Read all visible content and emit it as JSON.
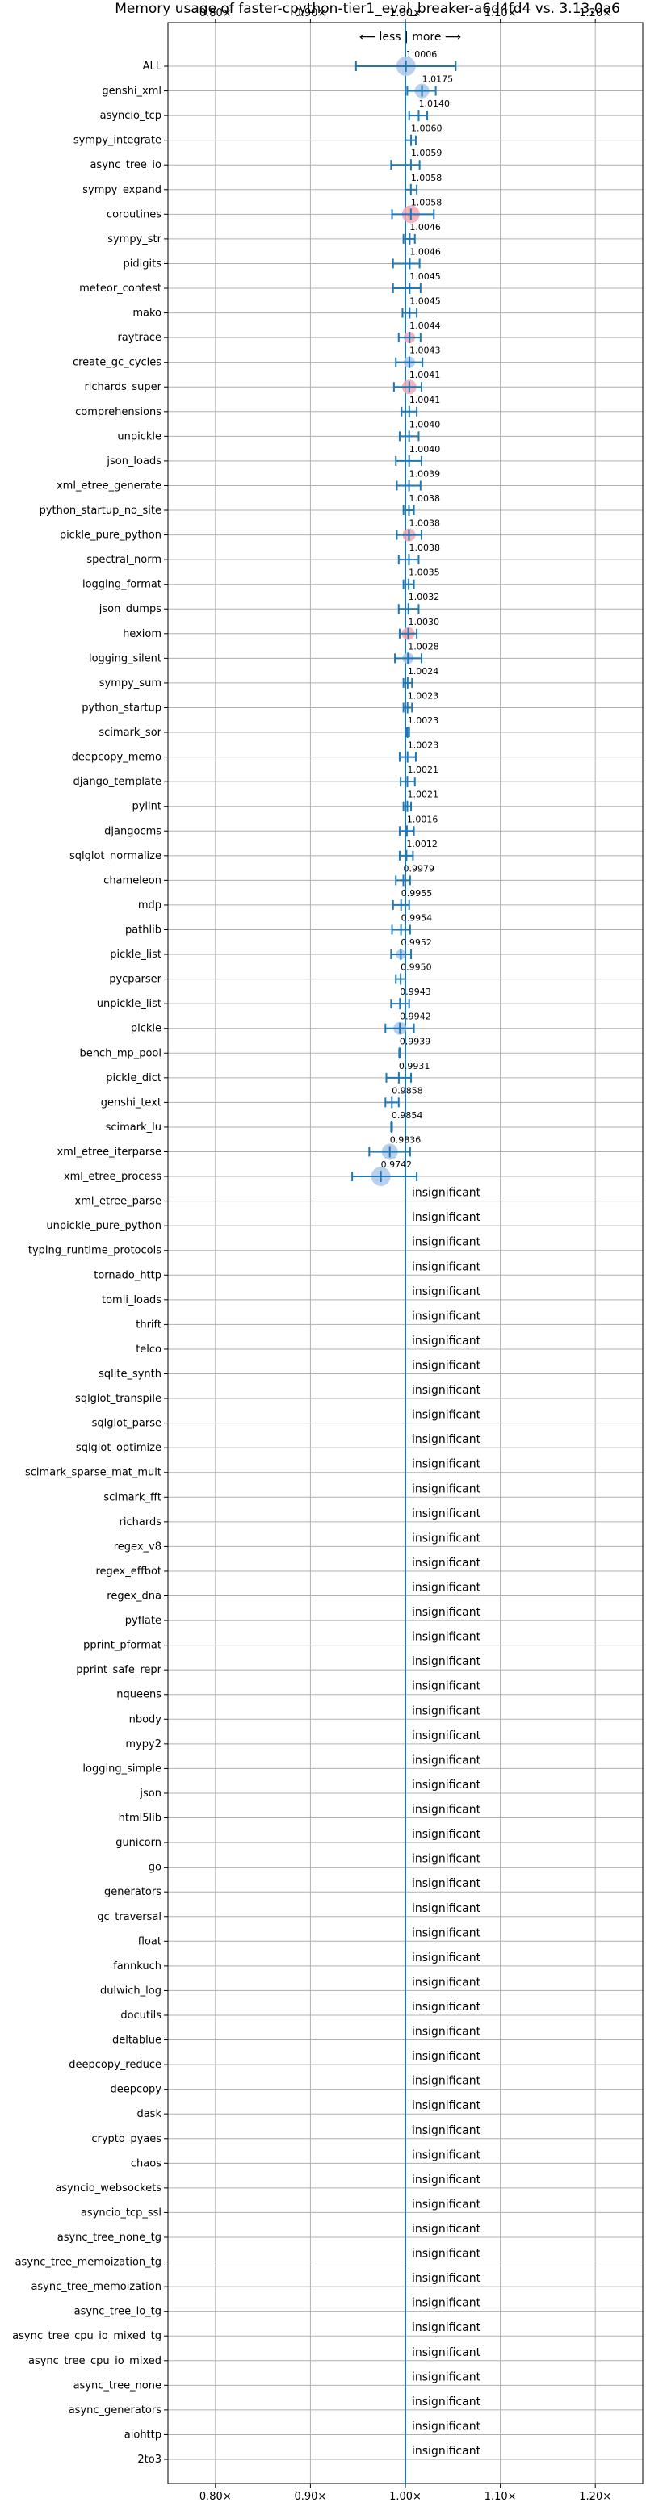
{
  "chart_data": {
    "type": "scatter",
    "title": "Memory usage of faster-cpython-tier1_eval_breaker-a6d4fd4 vs. 3.13.0a6",
    "direction_label": "⟵ less | more ⟶",
    "xlim": [
      0.75,
      1.25
    ],
    "x_ticks": [
      0.8,
      0.9,
      1.0,
      1.1,
      1.2
    ],
    "x_tick_labels": [
      "0.80×",
      "0.90×",
      "1.00×",
      "1.10×",
      "1.20×"
    ],
    "grid": true,
    "insignificant_label": "insignificant",
    "colors": {
      "axis_line": "#1f77b4",
      "error_bar": "#1f77b4",
      "point_blue": "#aec7e8",
      "point_red": "#f4a6b0",
      "grid": "#b0b0b0"
    },
    "benchmarks": [
      {
        "name": "ALL",
        "value": 1.0006,
        "label": "1.0006",
        "err": [
          0.948,
          1.053
        ],
        "highlight": "blue",
        "size": 12
      },
      {
        "name": "genshi_xml",
        "value": 1.0175,
        "label": "1.0175",
        "err": [
          1.002,
          1.032
        ],
        "highlight": "blue",
        "size": 9
      },
      {
        "name": "asyncio_tcp",
        "value": 1.014,
        "label": "1.0140",
        "err": [
          1.004,
          1.023
        ],
        "highlight": "none",
        "size": 0
      },
      {
        "name": "sympy_integrate",
        "value": 1.006,
        "label": "1.0060",
        "err": [
          1.0,
          1.011
        ],
        "highlight": "none",
        "size": 0
      },
      {
        "name": "async_tree_io",
        "value": 1.0059,
        "label": "1.0059",
        "err": [
          0.985,
          1.015
        ],
        "highlight": "none",
        "size": 0
      },
      {
        "name": "sympy_expand",
        "value": 1.0058,
        "label": "1.0058",
        "err": [
          1.0,
          1.012
        ],
        "highlight": "none",
        "size": 0
      },
      {
        "name": "coroutines",
        "value": 1.0058,
        "label": "1.0058",
        "err": [
          0.986,
          1.03
        ],
        "highlight": "red",
        "size": 11
      },
      {
        "name": "sympy_str",
        "value": 1.0046,
        "label": "1.0046",
        "err": [
          0.998,
          1.01
        ],
        "highlight": "none",
        "size": 0
      },
      {
        "name": "pidigits",
        "value": 1.0046,
        "label": "1.0046",
        "err": [
          0.987,
          1.015
        ],
        "highlight": "none",
        "size": 0
      },
      {
        "name": "meteor_contest",
        "value": 1.0045,
        "label": "1.0045",
        "err": [
          0.987,
          1.016
        ],
        "highlight": "none",
        "size": 0
      },
      {
        "name": "mako",
        "value": 1.0045,
        "label": "1.0045",
        "err": [
          0.997,
          1.012
        ],
        "highlight": "none",
        "size": 0
      },
      {
        "name": "raytrace",
        "value": 1.0044,
        "label": "1.0044",
        "err": [
          0.993,
          1.016
        ],
        "highlight": "red",
        "size": 7
      },
      {
        "name": "create_gc_cycles",
        "value": 1.0043,
        "label": "1.0043",
        "err": [
          0.99,
          1.018
        ],
        "highlight": "blue",
        "size": 7
      },
      {
        "name": "richards_super",
        "value": 1.0041,
        "label": "1.0041",
        "err": [
          0.988,
          1.017
        ],
        "highlight": "red",
        "size": 9
      },
      {
        "name": "comprehensions",
        "value": 1.0041,
        "label": "1.0041",
        "err": [
          0.996,
          1.012
        ],
        "highlight": "none",
        "size": 0
      },
      {
        "name": "unpickle",
        "value": 1.004,
        "label": "1.0040",
        "err": [
          0.994,
          1.014
        ],
        "highlight": "none",
        "size": 0
      },
      {
        "name": "json_loads",
        "value": 1.004,
        "label": "1.0040",
        "err": [
          0.99,
          1.017
        ],
        "highlight": "none",
        "size": 0
      },
      {
        "name": "xml_etree_generate",
        "value": 1.0039,
        "label": "1.0039",
        "err": [
          0.991,
          1.016
        ],
        "highlight": "none",
        "size": 0
      },
      {
        "name": "python_startup_no_site",
        "value": 1.0038,
        "label": "1.0038",
        "err": [
          0.998,
          1.009
        ],
        "highlight": "none",
        "size": 0
      },
      {
        "name": "pickle_pure_python",
        "value": 1.0038,
        "label": "1.0038",
        "err": [
          0.991,
          1.017
        ],
        "highlight": "red",
        "size": 8
      },
      {
        "name": "spectral_norm",
        "value": 1.0038,
        "label": "1.0038",
        "err": [
          0.993,
          1.014
        ],
        "highlight": "none",
        "size": 0
      },
      {
        "name": "logging_format",
        "value": 1.0035,
        "label": "1.0035",
        "err": [
          0.998,
          1.009
        ],
        "highlight": "none",
        "size": 0
      },
      {
        "name": "json_dumps",
        "value": 1.0032,
        "label": "1.0032",
        "err": [
          0.993,
          1.014
        ],
        "highlight": "none",
        "size": 0
      },
      {
        "name": "hexiom",
        "value": 1.003,
        "label": "1.0030",
        "err": [
          0.994,
          1.012
        ],
        "highlight": "red",
        "size": 8
      },
      {
        "name": "logging_silent",
        "value": 1.0028,
        "label": "1.0028",
        "err": [
          0.989,
          1.017
        ],
        "highlight": "blue",
        "size": 7
      },
      {
        "name": "sympy_sum",
        "value": 1.0024,
        "label": "1.0024",
        "err": [
          0.998,
          1.007
        ],
        "highlight": "none",
        "size": 0
      },
      {
        "name": "python_startup",
        "value": 1.0023,
        "label": "1.0023",
        "err": [
          0.998,
          1.007
        ],
        "highlight": "none",
        "size": 0
      },
      {
        "name": "scimark_sor",
        "value": 1.0023,
        "label": "1.0023",
        "err": [
          1.001,
          1.004
        ],
        "highlight": "none",
        "size": 0
      },
      {
        "name": "deepcopy_memo",
        "value": 1.0023,
        "label": "1.0023",
        "err": [
          0.994,
          1.011
        ],
        "highlight": "none",
        "size": 0
      },
      {
        "name": "django_template",
        "value": 1.0021,
        "label": "1.0021",
        "err": [
          0.995,
          1.01
        ],
        "highlight": "none",
        "size": 0
      },
      {
        "name": "pylint",
        "value": 1.0021,
        "label": "1.0021",
        "err": [
          0.998,
          1.006
        ],
        "highlight": "none",
        "size": 0
      },
      {
        "name": "djangocms",
        "value": 1.0016,
        "label": "1.0016",
        "err": [
          0.994,
          1.009
        ],
        "highlight": "none",
        "size": 0
      },
      {
        "name": "sqlglot_normalize",
        "value": 1.0012,
        "label": "1.0012",
        "err": [
          0.994,
          1.008
        ],
        "highlight": "none",
        "size": 0
      },
      {
        "name": "chameleon",
        "value": 0.9979,
        "label": "0.9979",
        "err": [
          0.99,
          1.005
        ],
        "highlight": "none",
        "size": 0
      },
      {
        "name": "mdp",
        "value": 0.9955,
        "label": "0.9955",
        "err": [
          0.987,
          1.004
        ],
        "highlight": "none",
        "size": 0
      },
      {
        "name": "pathlib",
        "value": 0.9954,
        "label": "0.9954",
        "err": [
          0.986,
          1.005
        ],
        "highlight": "none",
        "size": 0
      },
      {
        "name": "pickle_list",
        "value": 0.9952,
        "label": "0.9952",
        "err": [
          0.985,
          1.006
        ],
        "highlight": "blue",
        "size": 6
      },
      {
        "name": "pycparser",
        "value": 0.995,
        "label": "0.9950",
        "err": [
          0.99,
          1.0
        ],
        "highlight": "none",
        "size": 0
      },
      {
        "name": "unpickle_list",
        "value": 0.9943,
        "label": "0.9943",
        "err": [
          0.985,
          1.004
        ],
        "highlight": "none",
        "size": 0
      },
      {
        "name": "pickle",
        "value": 0.9942,
        "label": "0.9942",
        "err": [
          0.979,
          1.009
        ],
        "highlight": "blue",
        "size": 8
      },
      {
        "name": "bench_mp_pool",
        "value": 0.9939,
        "label": "0.9939",
        "err": [
          0.9935,
          0.9943
        ],
        "highlight": "none",
        "size": 0
      },
      {
        "name": "pickle_dict",
        "value": 0.9931,
        "label": "0.9931",
        "err": [
          0.98,
          1.006
        ],
        "highlight": "none",
        "size": 0
      },
      {
        "name": "genshi_text",
        "value": 0.9858,
        "label": "0.9858",
        "err": [
          0.979,
          0.993
        ],
        "highlight": "none",
        "size": 0
      },
      {
        "name": "scimark_lu",
        "value": 0.9854,
        "label": "0.9854",
        "err": [
          0.985,
          0.986
        ],
        "highlight": "none",
        "size": 0
      },
      {
        "name": "xml_etree_iterparse",
        "value": 0.9836,
        "label": "0.9836",
        "err": [
          0.962,
          1.005
        ],
        "highlight": "blue",
        "size": 10
      },
      {
        "name": "xml_etree_process",
        "value": 0.9742,
        "label": "0.9742",
        "err": [
          0.944,
          1.012
        ],
        "highlight": "blue",
        "size": 12
      },
      {
        "name": "xml_etree_parse",
        "insignificant": true
      },
      {
        "name": "unpickle_pure_python",
        "insignificant": true
      },
      {
        "name": "typing_runtime_protocols",
        "insignificant": true
      },
      {
        "name": "tornado_http",
        "insignificant": true
      },
      {
        "name": "tomli_loads",
        "insignificant": true
      },
      {
        "name": "thrift",
        "insignificant": true
      },
      {
        "name": "telco",
        "insignificant": true
      },
      {
        "name": "sqlite_synth",
        "insignificant": true
      },
      {
        "name": "sqlglot_transpile",
        "insignificant": true
      },
      {
        "name": "sqlglot_parse",
        "insignificant": true
      },
      {
        "name": "sqlglot_optimize",
        "insignificant": true
      },
      {
        "name": "scimark_sparse_mat_mult",
        "insignificant": true
      },
      {
        "name": "scimark_fft",
        "insignificant": true
      },
      {
        "name": "richards",
        "insignificant": true
      },
      {
        "name": "regex_v8",
        "insignificant": true
      },
      {
        "name": "regex_effbot",
        "insignificant": true
      },
      {
        "name": "regex_dna",
        "insignificant": true
      },
      {
        "name": "pyflate",
        "insignificant": true
      },
      {
        "name": "pprint_pformat",
        "insignificant": true
      },
      {
        "name": "pprint_safe_repr",
        "insignificant": true
      },
      {
        "name": "nqueens",
        "insignificant": true
      },
      {
        "name": "nbody",
        "insignificant": true
      },
      {
        "name": "mypy2",
        "insignificant": true
      },
      {
        "name": "logging_simple",
        "insignificant": true
      },
      {
        "name": "json",
        "insignificant": true
      },
      {
        "name": "html5lib",
        "insignificant": true
      },
      {
        "name": "gunicorn",
        "insignificant": true
      },
      {
        "name": "go",
        "insignificant": true
      },
      {
        "name": "generators",
        "insignificant": true
      },
      {
        "name": "gc_traversal",
        "insignificant": true
      },
      {
        "name": "float",
        "insignificant": true
      },
      {
        "name": "fannkuch",
        "insignificant": true
      },
      {
        "name": "dulwich_log",
        "insignificant": true
      },
      {
        "name": "docutils",
        "insignificant": true
      },
      {
        "name": "deltablue",
        "insignificant": true
      },
      {
        "name": "deepcopy_reduce",
        "insignificant": true
      },
      {
        "name": "deepcopy",
        "insignificant": true
      },
      {
        "name": "dask",
        "insignificant": true
      },
      {
        "name": "crypto_pyaes",
        "insignificant": true
      },
      {
        "name": "chaos",
        "insignificant": true
      },
      {
        "name": "asyncio_websockets",
        "insignificant": true
      },
      {
        "name": "asyncio_tcp_ssl",
        "insignificant": true
      },
      {
        "name": "async_tree_none_tg",
        "insignificant": true
      },
      {
        "name": "async_tree_memoization_tg",
        "insignificant": true
      },
      {
        "name": "async_tree_memoization",
        "insignificant": true
      },
      {
        "name": "async_tree_io_tg",
        "insignificant": true
      },
      {
        "name": "async_tree_cpu_io_mixed_tg",
        "insignificant": true
      },
      {
        "name": "async_tree_cpu_io_mixed",
        "insignificant": true
      },
      {
        "name": "async_tree_none",
        "insignificant": true
      },
      {
        "name": "async_generators",
        "insignificant": true
      },
      {
        "name": "aiohttp",
        "insignificant": true
      },
      {
        "name": "2to3",
        "insignificant": true
      }
    ]
  }
}
